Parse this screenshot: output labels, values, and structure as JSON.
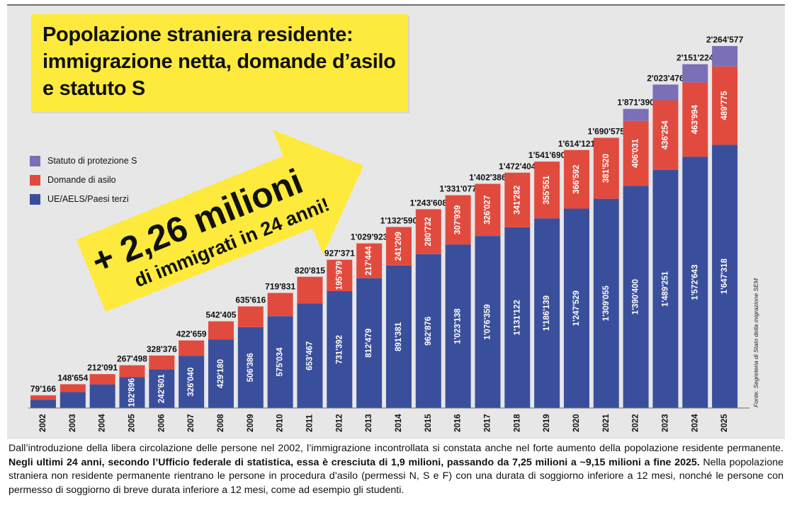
{
  "title": "Popolazione straniera residente: immigrazione netta, domande d’asilo e statuto S",
  "arrow_line1": "+ 2,26 milioni",
  "arrow_line2": "di immigrati in 24 anni!",
  "source": "Fonte: Segreteria di Stato della migrazione SEM",
  "caption": {
    "part1": "Dall’introduzione della libera circolazione delle persone nel 2002, l’immigrazione incontrollata si constata anche nel forte aumento della popolazione residente permanente. ",
    "bold": "Negli ultimi 24 anni, secondo l’Ufficio federale di statistica, essa è cresciuta di 1,9 milioni, passando da 7,25 milioni a ~9,15 milioni a fine 2025.",
    "part2": " Nella popolazione straniera non residente permanente rientrano le persone in procedura d’asilo (permessi N, S e F) con una durata di soggiorno inferiore a 12 mesi, nonché le persone con permesso di soggiorno di breve durata inferiore a 12 mesi, come ad esempio gli studenti."
  },
  "colors": {
    "ue": "#3a4f9c",
    "asilo": "#e14b3e",
    "statuto_s": "#7b6fb8",
    "title_bg": "#fdea3c",
    "arrow_bg": "#fdea3c",
    "panel_bg": "#e7e7e8"
  },
  "chart_data": {
    "type": "bar",
    "stacked": true,
    "title": "Popolazione straniera residente: immigrazione netta, domande d’asilo e statuto S",
    "legend_position": "left",
    "categories": [
      "2002",
      "2003",
      "2004",
      "2005",
      "2006",
      "2007",
      "2008",
      "2009",
      "2010",
      "2011",
      "2012",
      "2013",
      "2014",
      "2015",
      "2016",
      "2017",
      "2018",
      "2019",
      "2020",
      "2021",
      "2022",
      "2023",
      "2024",
      "2025"
    ],
    "legend": [
      {
        "name": "Statuto di protezione S",
        "color_key": "statuto_s"
      },
      {
        "name": "Domande di asilo",
        "color_key": "asilo"
      },
      {
        "name": "UE/AELS/Paesi terzi",
        "color_key": "ue"
      }
    ],
    "series": [
      {
        "name": "UE/AELS/Paesi terzi",
        "values": [
          52000,
          100000,
          148000,
          192896,
          242601,
          326040,
          429180,
          506386,
          575034,
          653467,
          731392,
          812479,
          891381,
          962876,
          1023138,
          1076359,
          1131122,
          1186139,
          1247529,
          1309055,
          1390400,
          1489251,
          1572643,
          1647318
        ],
        "labels": [
          "",
          "",
          "",
          "192'896",
          "242'601",
          "326'040",
          "429'180",
          "506'386",
          "575'034",
          "653'467",
          "731'392",
          "812'479",
          "891'381",
          "962'876",
          "1'023'138",
          "1'076'359",
          "1'131'122",
          "1'186'139",
          "1'247'529",
          "1'309'055",
          "1'390'400",
          "1'489'251",
          "1'572'643",
          "1'647'318"
        ]
      },
      {
        "name": "Domande di asilo",
        "values": [
          27166,
          48654,
          64091,
          74602,
          85775,
          96619,
          113225,
          129230,
          144797,
          167348,
          195979,
          217444,
          241209,
          280732,
          307939,
          326027,
          341282,
          355551,
          366592,
          381520,
          406031,
          436254,
          463994,
          489775
        ],
        "labels": [
          "",
          "",
          "",
          "",
          "",
          "",
          "",
          "",
          "",
          "",
          "195'979",
          "217'444",
          "241'209",
          "280'732",
          "307'939",
          "326'027",
          "341'282",
          "355'551",
          "366'592",
          "381'520",
          "406'031",
          "436'254",
          "463'994",
          "489'775"
        ]
      },
      {
        "name": "Statuto di protezione S",
        "values": [
          0,
          0,
          0,
          0,
          0,
          0,
          0,
          0,
          0,
          0,
          0,
          0,
          0,
          0,
          0,
          0,
          0,
          0,
          0,
          0,
          74959,
          97971,
          114587,
          127484
        ],
        "labels": []
      }
    ],
    "totals": [
      "79'166",
      "148'654",
      "212'091",
      "267'498",
      "328'376",
      "422'659",
      "542'405",
      "635'616",
      "719'831",
      "820'815",
      "927'371",
      "1'029'923",
      "1'132'590",
      "1'243'608",
      "1'331'077",
      "1'402'386",
      "1'472'404",
      "1'541'690",
      "1'614'121",
      "1'690'575",
      "1'871'390",
      "2'023'476",
      "2'151'224",
      "2'264'577"
    ],
    "total_values": [
      79166,
      148654,
      212091,
      267498,
      328376,
      422659,
      542405,
      635616,
      719831,
      820815,
      927371,
      1029923,
      1132590,
      1243608,
      1331077,
      1402386,
      1472404,
      1541690,
      1614121,
      1690575,
      1871390,
      2023476,
      2151224,
      2264577
    ],
    "ylim": [
      0,
      2264577
    ],
    "grid": false
  }
}
